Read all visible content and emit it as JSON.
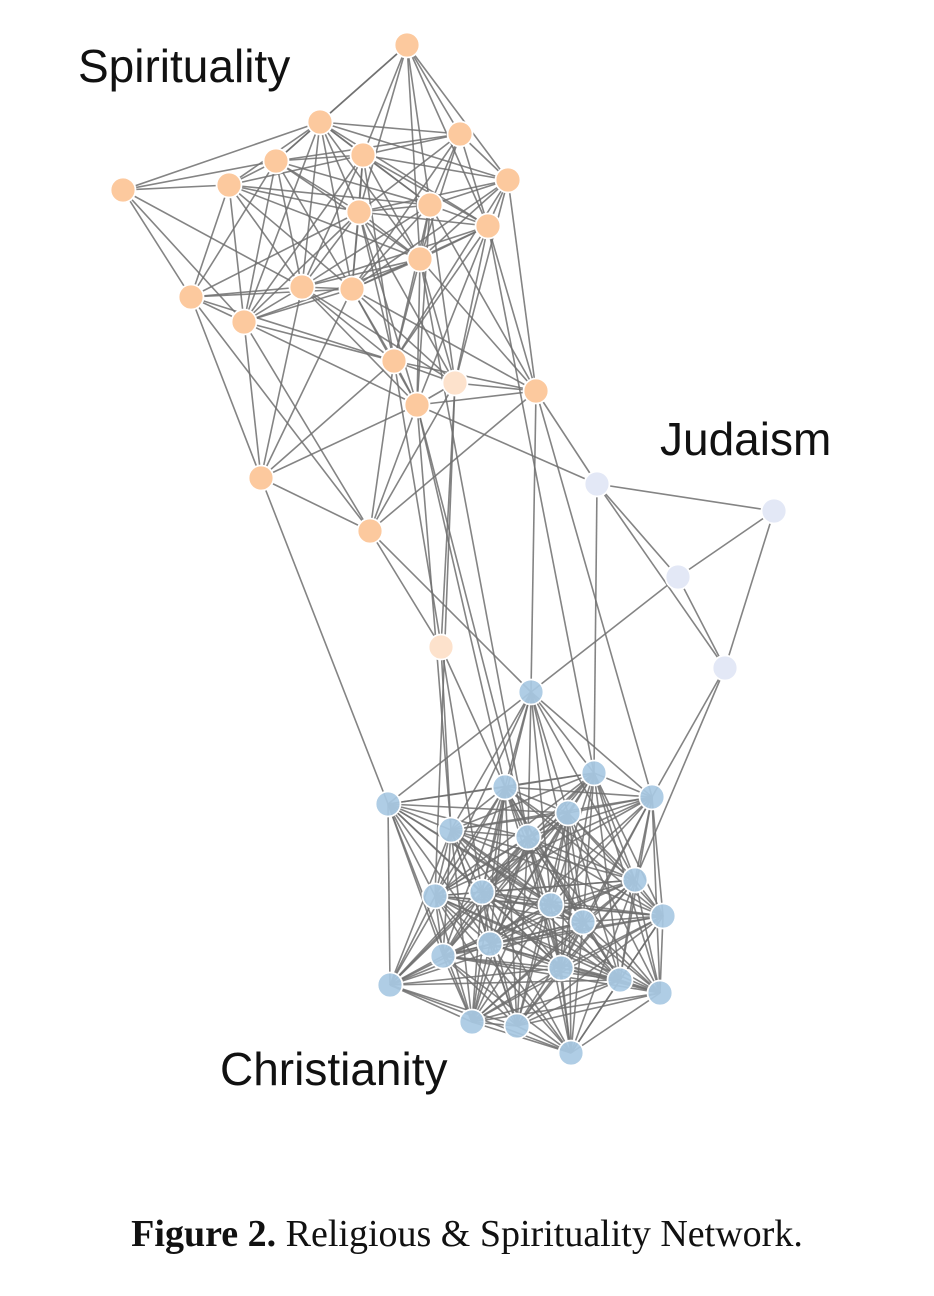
{
  "labels": {
    "spirituality": "Spirituality",
    "judaism": "Judaism",
    "christianity": "Christianity"
  },
  "caption": {
    "label": "Figure 2.",
    "text": "Religious & Spirituality Network."
  },
  "colors": {
    "spirituality": "#fcc99e",
    "spirituality_light": "#fde2cc",
    "judaism": "#e3e8f6",
    "christianity": "#a8c9e3",
    "edge": "#6e6e6e"
  }
}
